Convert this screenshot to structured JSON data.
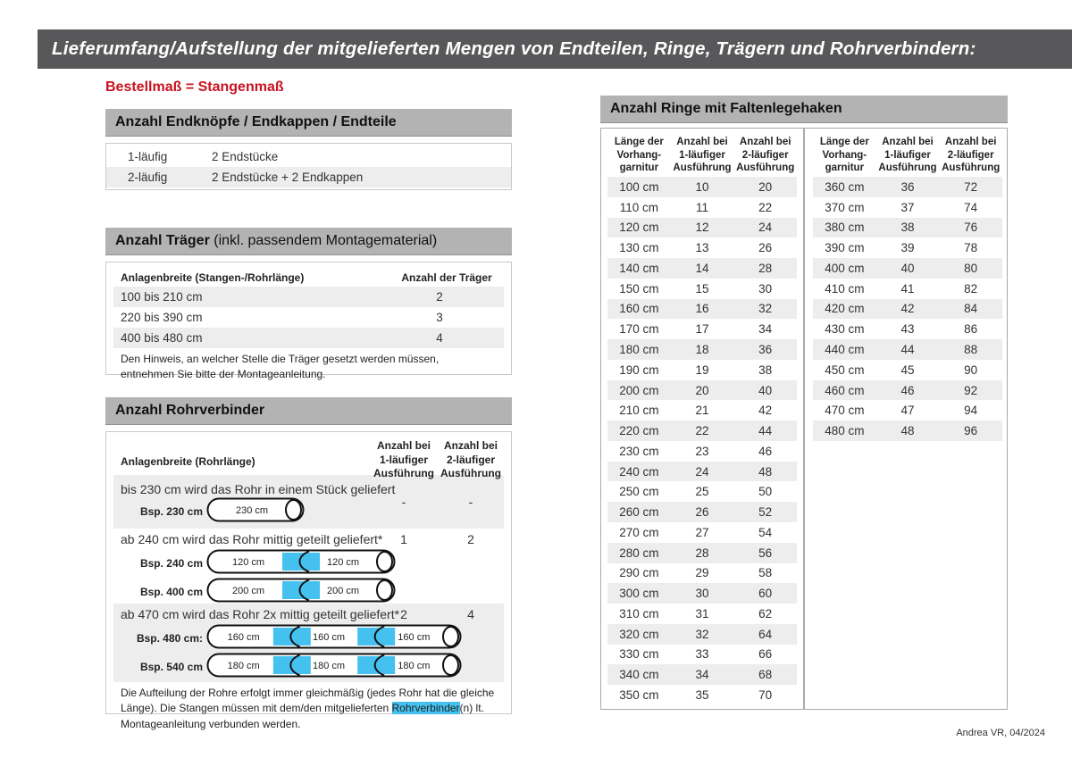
{
  "title_bar": "Lieferumfang/Aufstellung der mitgelieferten Mengen von Endteilen, Ringe, Trägern und Rohrverbindern:",
  "colors": {
    "bar_gray": "#58585a",
    "section_header_gray": "#b3b3b3",
    "row_stripe_gray": "#ededed",
    "accent_red": "#c8121f",
    "connector_blue": "#45c1ef"
  },
  "left": {
    "subtitle": "Bestellmaß = Stangenmaß",
    "endteile": {
      "title": "Anzahl Endknöpfe / Endkappen / Endteile",
      "rows": [
        {
          "label": "1-läufig",
          "value": "2 Endstücke"
        },
        {
          "label": "2-läufig",
          "value": "2 Endstücke + 2 Endkappen"
        }
      ]
    },
    "traeger": {
      "title_bold": "Anzahl Träger",
      "title_rest": " (inkl. passendem Montagematerial)",
      "col_width": "Anlagenbreite (Stangen-/Rohrlänge)",
      "col_count": "Anzahl der Träger",
      "rows": [
        {
          "range": "100 bis 210 cm",
          "count": "2"
        },
        {
          "range": "220 bis 390 cm",
          "count": "3"
        },
        {
          "range": "400 bis 480 cm",
          "count": "4"
        }
      ],
      "note": "Den Hinweis, an welcher Stelle die Träger gesetzt werden müssen, entnehmen Sie bitte der Montageanleitung."
    },
    "rohr": {
      "title": "Anzahl Rohrverbinder",
      "col_width": "Anlagenbreite (Rohrlänge)",
      "col_one": "Anzahl bei\n1-läufiger\nAusführung",
      "col_two": "Anzahl bei\n2-läufiger\nAusführung",
      "sections": [
        {
          "text": "bis 230 cm wird das Rohr in einem Stück geliefert",
          "one": "-",
          "two": "-",
          "rods": [
            {
              "label": "Bsp. 230 cm",
              "segments": [
                "230 cm"
              ]
            }
          ]
        },
        {
          "text": "ab 240 cm wird das Rohr mittig geteilt geliefert*",
          "one": "1",
          "two": "2",
          "rods": [
            {
              "label": "Bsp. 240 cm",
              "segments": [
                "120 cm",
                "120 cm"
              ]
            },
            {
              "label": "Bsp. 400 cm",
              "segments": [
                "200 cm",
                "200 cm"
              ]
            }
          ]
        },
        {
          "text": "ab 470 cm wird das Rohr 2x mittig geteilt geliefert*",
          "one": "2",
          "two": "4",
          "rods": [
            {
              "label": "Bsp. 480 cm:",
              "segments": [
                "160 cm",
                "160 cm",
                "160 cm"
              ]
            },
            {
              "label": "Bsp. 540 cm",
              "segments": [
                "180 cm",
                "180 cm",
                "180 cm"
              ]
            }
          ]
        }
      ],
      "note_pre": "Die Aufteilung der Rohre erfolgt immer gleichmäßig (jedes Rohr hat die gleiche Länge). Die Stan­gen müssen mit dem/den mitgelieferten ",
      "note_highlight": "Rohrverbinder",
      "note_post": "(n) lt. Montageanleitung verbunden werden."
    }
  },
  "rings": {
    "title": "Anzahl Ringe mit Faltenlegehaken",
    "col_length": "Länge der\nVorhang-\ngarnitur",
    "col_one": "Anzahl bei\n1-läufiger\nAusführung",
    "col_two": "Anzahl bei\n2-läufiger\nAusführung",
    "table_left": [
      [
        "100 cm",
        "10",
        "20"
      ],
      [
        "110 cm",
        "11",
        "22"
      ],
      [
        "120 cm",
        "12",
        "24"
      ],
      [
        "130 cm",
        "13",
        "26"
      ],
      [
        "140 cm",
        "14",
        "28"
      ],
      [
        "150 cm",
        "15",
        "30"
      ],
      [
        "160 cm",
        "16",
        "32"
      ],
      [
        "170 cm",
        "17",
        "34"
      ],
      [
        "180 cm",
        "18",
        "36"
      ],
      [
        "190 cm",
        "19",
        "38"
      ],
      [
        "200 cm",
        "20",
        "40"
      ],
      [
        "210 cm",
        "21",
        "42"
      ],
      [
        "220 cm",
        "22",
        "44"
      ],
      [
        "230 cm",
        "23",
        "46"
      ],
      [
        "240 cm",
        "24",
        "48"
      ],
      [
        "250 cm",
        "25",
        "50"
      ],
      [
        "260 cm",
        "26",
        "52"
      ],
      [
        "270 cm",
        "27",
        "54"
      ],
      [
        "280 cm",
        "28",
        "56"
      ],
      [
        "290 cm",
        "29",
        "58"
      ],
      [
        "300 cm",
        "30",
        "60"
      ],
      [
        "310 cm",
        "31",
        "62"
      ],
      [
        "320 cm",
        "32",
        "64"
      ],
      [
        "330 cm",
        "33",
        "66"
      ],
      [
        "340 cm",
        "34",
        "68"
      ],
      [
        "350 cm",
        "35",
        "70"
      ]
    ],
    "table_right": [
      [
        "360 cm",
        "36",
        "72"
      ],
      [
        "370 cm",
        "37",
        "74"
      ],
      [
        "380 cm",
        "38",
        "76"
      ],
      [
        "390 cm",
        "39",
        "78"
      ],
      [
        "400 cm",
        "40",
        "80"
      ],
      [
        "410 cm",
        "41",
        "82"
      ],
      [
        "420 cm",
        "42",
        "84"
      ],
      [
        "430 cm",
        "43",
        "86"
      ],
      [
        "440 cm",
        "44",
        "88"
      ],
      [
        "450 cm",
        "45",
        "90"
      ],
      [
        "460 cm",
        "46",
        "92"
      ],
      [
        "470 cm",
        "47",
        "94"
      ],
      [
        "480 cm",
        "48",
        "96"
      ]
    ]
  },
  "footer": "Andrea VR, 04/2024"
}
